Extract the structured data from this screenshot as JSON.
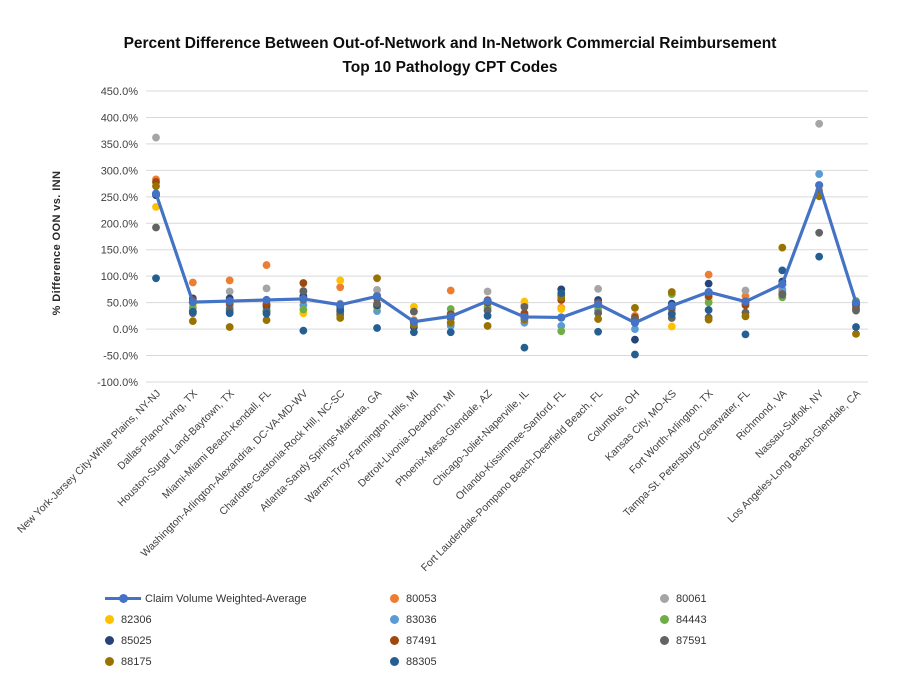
{
  "title": {
    "line1": "Percent Difference Between Out-of-Network and In-Network Commercial Reimbursement",
    "line2": "Top 10 Pathology CPT Codes"
  },
  "y_axis": {
    "label": "% Difference OON vs. INN",
    "ticks": [
      "450.0%",
      "400.0%",
      "350.0%",
      "300.0%",
      "250.0%",
      "200.0%",
      "150.0%",
      "100.0%",
      "50.0%",
      "0.0%",
      "-50.0%",
      "-100.0%"
    ],
    "max": 450,
    "min": -100,
    "step": 50
  },
  "chart_data": {
    "type": "line+scatter",
    "ylim": [
      -100,
      450
    ],
    "grid": "horizontal",
    "legend_position": "bottom",
    "categories": [
      "New York-Jersey City-White Plains, NY-NJ",
      "Dallas-Plano-Irving, TX",
      "Houston-Sugar Land-Baytown, TX",
      "Miami-Miami Beach-Kendall, FL",
      "Washington-Arlington-Alexandria, DC-VA-MD-WV",
      "Charlotte-Gastonia-Rock Hill, NC-SC",
      "Atlanta-Sandy Springs-Marietta, GA",
      "Warren-Troy-Farmington Hills, MI",
      "Detroit-Livonia-Dearborn, MI",
      "Phoenix-Mesa-Glendale, AZ",
      "Chicago-Joliet-Naperville, IL",
      "Orlando-Kissimmee-Sanford, FL",
      "Fort Lauderdale-Pompano Beach-Deerfield Beach, FL",
      "Columbus, OH",
      "Kansas City, MO-KS",
      "Fort Worth-Arlington, TX",
      "Tampa-St. Petersburg-Clearwater, FL",
      "Richmond, VA",
      "Nassau-Suffolk, NY",
      "Los Angeles-Long Beach-Glendale, CA"
    ],
    "series": [
      {
        "name": "Claim Volume Weighted-Average",
        "type": "line",
        "color": "#4472C4",
        "values": [
          256,
          51,
          53,
          55,
          57,
          46,
          62,
          14,
          24,
          53,
          23,
          22,
          47,
          12,
          44,
          70,
          52,
          85,
          272,
          50
        ]
      },
      {
        "name": "80053",
        "type": "scatter",
        "color": "#ED7D31",
        "values": [
          283,
          88,
          92,
          121,
          59,
          79,
          64,
          17,
          73,
          55,
          27,
          40,
          52,
          25,
          45,
          103,
          62,
          75,
          262,
          45
        ]
      },
      {
        "name": "80061",
        "type": "scatter",
        "color": "#A5A5A5",
        "values": [
          362,
          50,
          71,
          77,
          70,
          48,
          74,
          33,
          30,
          71,
          45,
          21,
          76,
          15,
          35,
          60,
          73,
          70,
          388,
          40
        ]
      },
      {
        "name": "82306",
        "type": "scatter",
        "color": "#FFC000",
        "values": [
          231,
          46,
          44,
          42,
          30,
          92,
          60,
          42,
          25,
          42,
          52,
          38,
          45,
          20,
          5,
          55,
          48,
          68,
          259,
          42
        ]
      },
      {
        "name": "83036",
        "type": "scatter",
        "color": "#5B9BD5",
        "values": [
          256,
          34,
          40,
          38,
          45,
          42,
          34,
          10,
          6,
          48,
          12,
          6,
          35,
          0,
          30,
          67,
          50,
          72,
          293,
          44
        ]
      },
      {
        "name": "84443",
        "type": "scatter",
        "color": "#70AD47",
        "values": [
          254,
          40,
          33,
          35,
          37,
          40,
          42,
          15,
          38,
          40,
          20,
          -4,
          40,
          12,
          66,
          50,
          51,
          60,
          255,
          53
        ]
      },
      {
        "name": "85025",
        "type": "scatter",
        "color": "#264478",
        "values": [
          253,
          58,
          58,
          44,
          62,
          44,
          45,
          4,
          23,
          54,
          26,
          75,
          55,
          -20,
          48,
          86,
          52,
          90,
          254,
          47
        ]
      },
      {
        "name": "87491",
        "type": "scatter",
        "color": "#9E480E",
        "values": [
          278,
          55,
          48,
          47,
          87,
          33,
          58,
          14,
          28,
          50,
          30,
          55,
          50,
          22,
          40,
          62,
          45,
          66,
          257,
          38
        ]
      },
      {
        "name": "87591",
        "type": "scatter",
        "color": "#636363",
        "values": [
          192,
          30,
          36,
          33,
          72,
          27,
          48,
          33,
          20,
          35,
          42,
          63,
          30,
          19,
          21,
          22,
          31,
          65,
          182,
          35
        ]
      },
      {
        "name": "88175",
        "type": "scatter",
        "color": "#997300",
        "values": [
          270,
          15,
          4,
          17,
          55,
          21,
          96,
          8,
          12,
          6,
          18,
          60,
          19,
          40,
          70,
          18,
          24,
          154,
          251,
          -9
        ]
      },
      {
        "name": "88305",
        "type": "scatter",
        "color": "#255E91",
        "values": [
          96,
          33,
          30,
          29,
          -3,
          36,
          2,
          -6,
          -6,
          25,
          -35,
          68,
          -5,
          -48,
          28,
          36,
          -10,
          111,
          137,
          4
        ]
      }
    ]
  },
  "legend": {
    "columns": [
      [
        "Claim Volume Weighted-Average",
        "82306",
        "85025",
        "88175"
      ],
      [
        "80053",
        "83036",
        "87491",
        "88305"
      ],
      [
        "80061",
        "84443",
        "87591"
      ]
    ]
  },
  "colors": {
    "line": "#4472C4",
    "gridline": "#D9D9D9",
    "tick_text": "#404040"
  }
}
